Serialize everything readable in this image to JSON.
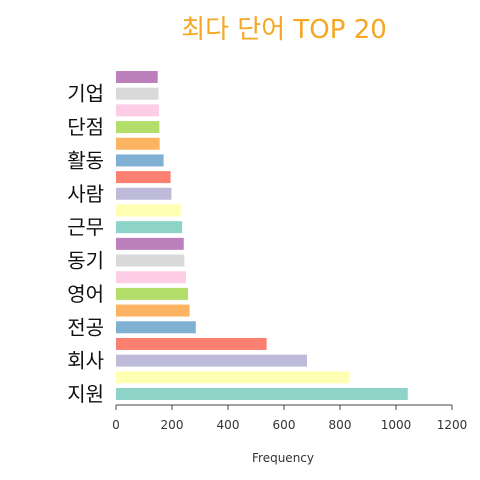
{
  "chart_data": {
    "type": "bar",
    "orientation": "horizontal",
    "title": "최다 단어 TOP 20",
    "title_color": "#F5A623",
    "xlabel": "Frequency",
    "ylabel": "",
    "xlim": [
      0,
      1200
    ],
    "x_ticks": [
      0,
      200,
      400,
      600,
      800,
      1000,
      1200
    ],
    "grid": false,
    "categories_bottom_to_top": [
      "지원",
      "",
      "회사",
      "",
      "전공",
      "",
      "영어",
      "",
      "동기",
      "",
      "근무",
      "",
      "사람",
      "",
      "활동",
      "",
      "단점",
      "",
      "기업",
      ""
    ],
    "values_bottom_to_top": [
      1042,
      832,
      682,
      538,
      285,
      263,
      257,
      250,
      244,
      242,
      236,
      232,
      198,
      195,
      170,
      156,
      155,
      153,
      152,
      149
    ],
    "colors_bottom_to_top": [
      "#8DD3C7",
      "#FFFFB3",
      "#BEBADA",
      "#FB8072",
      "#80B1D3",
      "#FDB462",
      "#B3DE69",
      "#FCCDE5",
      "#D9D9D9",
      "#BC80BD",
      "#8DD3C7",
      "#FFFFB3",
      "#BEBADA",
      "#FB8072",
      "#80B1D3",
      "#FDB462",
      "#B3DE69",
      "#FCCDE5",
      "#D9D9D9",
      "#BC80BD"
    ]
  }
}
